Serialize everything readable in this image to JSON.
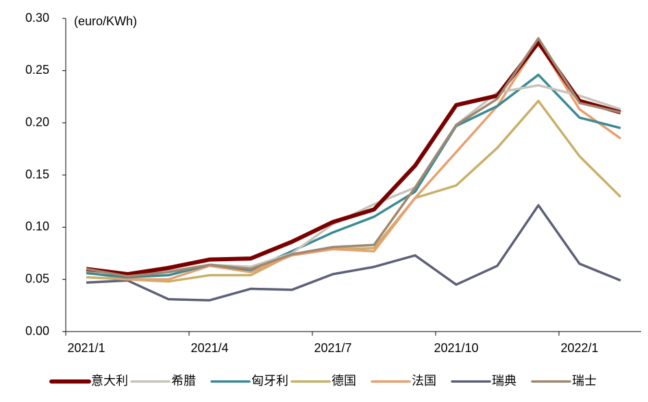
{
  "chart_data": {
    "type": "line",
    "unit_label": "(euro/KWh)",
    "categories": [
      "2021/1",
      null,
      null,
      "2021/4",
      null,
      null,
      "2021/7",
      null,
      null,
      "2021/10",
      null,
      null,
      "2022/1",
      null
    ],
    "ylim": [
      0,
      0.3
    ],
    "yticks": [
      {
        "value": 0,
        "label": "0.00"
      },
      {
        "value": 0.05,
        "label": "0.05"
      },
      {
        "value": 0.1,
        "label": "0.10"
      },
      {
        "value": 0.15,
        "label": "0.15"
      },
      {
        "value": 0.2,
        "label": "0.20"
      },
      {
        "value": 0.25,
        "label": "0.25"
      },
      {
        "value": 0.3,
        "label": "0.30"
      }
    ],
    "series": [
      {
        "name": "意大利",
        "color": "#7a0000",
        "values": [
          0.06,
          0.055,
          0.061,
          0.069,
          0.07,
          0.086,
          0.105,
          0.117,
          0.159,
          0.217,
          0.226,
          0.277,
          0.221,
          0.21
        ]
      },
      {
        "name": "希腊",
        "color": "#c8c4bc",
        "values": [
          0.059,
          0.054,
          0.058,
          0.064,
          0.062,
          0.075,
          0.103,
          0.122,
          0.138,
          0.198,
          0.229,
          0.236,
          0.226,
          0.213
        ]
      },
      {
        "name": "匈牙利",
        "color": "#3a8a94",
        "values": [
          0.056,
          0.052,
          0.054,
          0.064,
          0.059,
          0.077,
          0.095,
          0.11,
          0.134,
          0.197,
          0.216,
          0.246,
          0.205,
          0.195
        ]
      },
      {
        "name": "德国",
        "color": "#c8b068",
        "values": [
          0.052,
          0.05,
          0.048,
          0.054,
          0.054,
          0.074,
          0.079,
          0.08,
          0.128,
          0.14,
          0.176,
          0.221,
          0.168,
          0.129
        ]
      },
      {
        "name": "法国",
        "color": "#e8a070",
        "values": [
          0.057,
          0.05,
          0.05,
          0.063,
          0.057,
          0.073,
          0.079,
          0.077,
          0.128,
          0.172,
          0.216,
          0.277,
          0.213,
          0.185
        ]
      },
      {
        "name": "瑞典",
        "color": "#5c6078",
        "values": [
          0.047,
          0.049,
          0.031,
          0.03,
          0.041,
          0.04,
          0.055,
          0.062,
          0.073,
          0.045,
          0.063,
          0.121,
          0.065,
          0.049
        ]
      },
      {
        "name": "瑞士",
        "color": "#a08870",
        "values": [
          0.06,
          0.053,
          0.057,
          0.064,
          0.06,
          0.074,
          0.081,
          0.083,
          0.138,
          0.198,
          0.223,
          0.281,
          0.219,
          0.21
        ]
      }
    ]
  }
}
